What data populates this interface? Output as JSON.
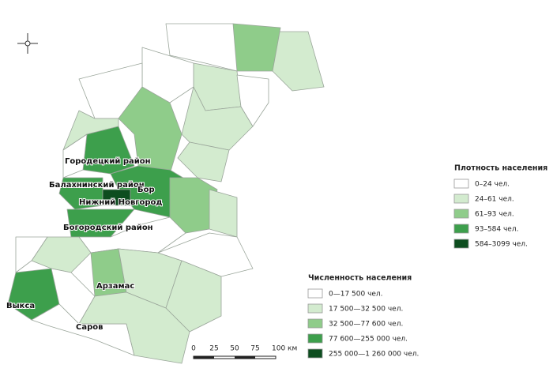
{
  "map": {
    "labels": [
      "Городецкий район",
      "Балахнинский район",
      "Бор",
      "Нижний Новгород",
      "Богородский район",
      "Арзамас",
      "Выкса",
      "Саров"
    ],
    "density_legend": {
      "title": "Плотность населения",
      "items": [
        {
          "label": "0–24 чел.",
          "color": "#ffffff"
        },
        {
          "label": "24–61 чел.",
          "color": "#d3ebcf"
        },
        {
          "label": "61–93 чел.",
          "color": "#8fcc8a"
        },
        {
          "label": "93–584 чел.",
          "color": "#3d9f4c"
        },
        {
          "label": "584–3099 чел.",
          "color": "#0d4d1f"
        }
      ]
    },
    "population_legend": {
      "title": "Численность населения",
      "items": [
        {
          "label": "0—17 500 чел.",
          "color": "#ffffff"
        },
        {
          "label": "17 500—32 500 чел.",
          "color": "#d3ebcf"
        },
        {
          "label": "32 500—77 600 чел.",
          "color": "#8fcc8a"
        },
        {
          "label": "77 600—255 000 чел.",
          "color": "#3d9f4c"
        },
        {
          "label": "255 000—1 260 000 чел.",
          "color": "#0d4d1f"
        }
      ]
    },
    "scale": [
      "0",
      "25",
      "50",
      "75",
      "100 км"
    ]
  }
}
